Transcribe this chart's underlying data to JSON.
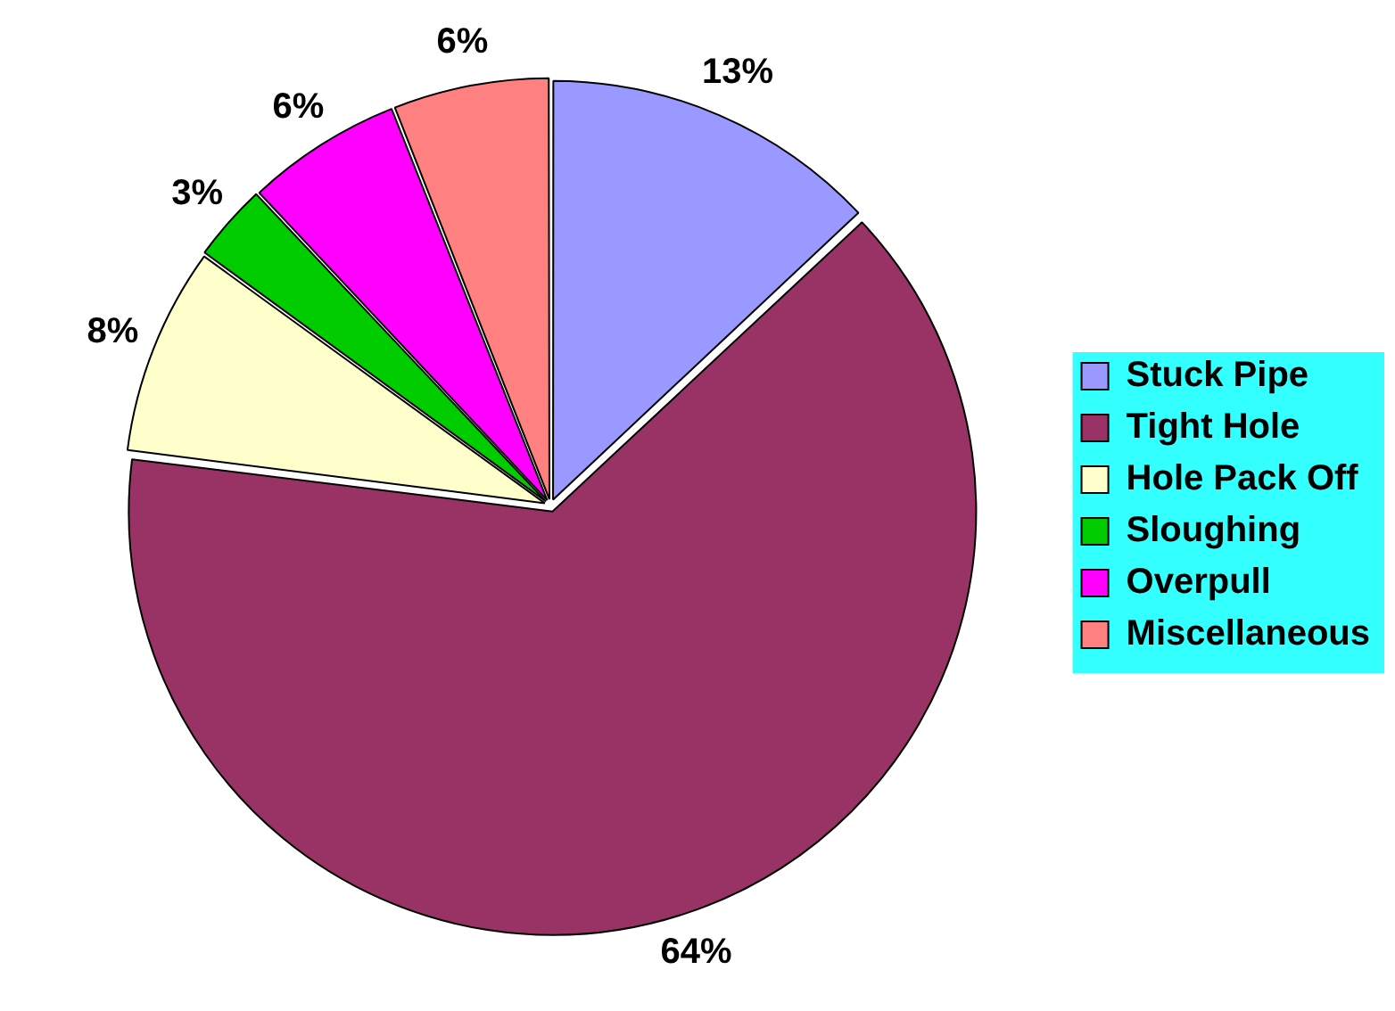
{
  "chart_data": {
    "type": "pie",
    "categories": [
      "Stuck Pipe",
      "Tight Hole",
      "Hole Pack Off",
      "Sloughing",
      "Overpull",
      "Miscellaneous"
    ],
    "values": [
      13,
      64,
      8,
      3,
      6,
      6
    ],
    "value_labels": [
      "13%",
      "64%",
      "8%",
      "3%",
      "6%",
      "6%"
    ],
    "colors": [
      "#9999ff",
      "#993366",
      "#ffffcc",
      "#00cc00",
      "#ff00ff",
      "#ff8080"
    ],
    "legend": "right"
  }
}
